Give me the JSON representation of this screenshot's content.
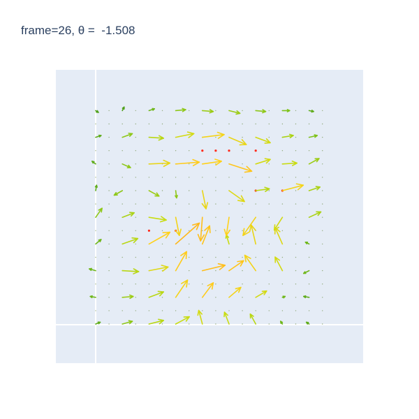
{
  "chart_data": {
    "type": "quiver",
    "title": "frame=26, θ =  -1.508",
    "xlabel": "",
    "ylabel": "",
    "grid": true,
    "legend": "none",
    "colors": {
      "plot_background": "#e5ecf6",
      "paper_background": "#ffffff",
      "grid": "#ffffff",
      "marker": "#ff2a1a",
      "arrow_scale": [
        "#2f8a1c",
        "#7fc21a",
        "#c8dc10",
        "#ffd11a",
        "#ffb21a"
      ]
    },
    "grid_points": {
      "x_range": [
        1,
        18
      ],
      "y_range": [
        1,
        17
      ],
      "description_count": "18 x 17 sample grid"
    },
    "source_points": [
      [
        9,
        14
      ],
      [
        10,
        14
      ],
      [
        11,
        14
      ],
      [
        13,
        14
      ],
      [
        13,
        11
      ],
      [
        15,
        11
      ],
      [
        5,
        8
      ],
      [
        7,
        8
      ]
    ],
    "arrows": [
      {
        "x": 1,
        "y": 1,
        "u": 0.5,
        "v": 0.2,
        "m": 0.15
      },
      {
        "x": 3,
        "y": 1,
        "u": 1.1,
        "v": 0.3,
        "m": 0.3
      },
      {
        "x": 5,
        "y": 1,
        "u": 1.6,
        "v": 0.4,
        "m": 0.45
      },
      {
        "x": 7,
        "y": 1,
        "u": 1.5,
        "v": 0.8,
        "m": 0.5
      },
      {
        "x": 9,
        "y": 1,
        "u": -0.4,
        "v": 1.5,
        "m": 0.55
      },
      {
        "x": 11,
        "y": 1,
        "u": -0.5,
        "v": 1.3,
        "m": 0.5
      },
      {
        "x": 13,
        "y": 1,
        "u": -0.6,
        "v": 1.1,
        "m": 0.45
      },
      {
        "x": 15,
        "y": 1,
        "u": -0.2,
        "v": 0.3,
        "m": 0.2
      },
      {
        "x": 17,
        "y": 1,
        "u": -0.3,
        "v": 0.2,
        "m": 0.15
      },
      {
        "x": 1,
        "y": 3,
        "u": -0.6,
        "v": 0.1,
        "m": 0.2
      },
      {
        "x": 3,
        "y": 3,
        "u": 1.2,
        "v": 0.1,
        "m": 0.35
      },
      {
        "x": 5,
        "y": 3,
        "u": 1.6,
        "v": 0.6,
        "m": 0.45
      },
      {
        "x": 7,
        "y": 3,
        "u": 1.3,
        "v": 1.9,
        "m": 0.7
      },
      {
        "x": 9,
        "y": 3,
        "u": 1.2,
        "v": 1.6,
        "m": 0.8
      },
      {
        "x": 11,
        "y": 3,
        "u": 1.3,
        "v": 1.1,
        "m": 0.7
      },
      {
        "x": 13,
        "y": 3,
        "u": 1.2,
        "v": 0.7,
        "m": 0.55
      },
      {
        "x": 15,
        "y": 3,
        "u": 0.3,
        "v": 0.1,
        "m": 0.2
      },
      {
        "x": 17,
        "y": 3,
        "u": -0.6,
        "v": 0.1,
        "m": 0.15
      },
      {
        "x": 1,
        "y": 5,
        "u": -0.7,
        "v": 0.2,
        "m": 0.2
      },
      {
        "x": 3,
        "y": 5,
        "u": 1.8,
        "v": -0.1,
        "m": 0.45
      },
      {
        "x": 5,
        "y": 5,
        "u": 2.1,
        "v": 0.4,
        "m": 0.6
      },
      {
        "x": 7,
        "y": 5,
        "u": 1.2,
        "v": 2.1,
        "m": 0.8
      },
      {
        "x": 9,
        "y": 5,
        "u": 2.5,
        "v": 0.6,
        "m": 0.9
      },
      {
        "x": 11,
        "y": 5,
        "u": 1.6,
        "v": 1.1,
        "m": 0.85
      },
      {
        "x": 13,
        "y": 5,
        "u": -1.2,
        "v": 1.7,
        "m": 0.7
      },
      {
        "x": 15,
        "y": 5,
        "u": -0.8,
        "v": 1.5,
        "m": 0.55
      },
      {
        "x": 17,
        "y": 5,
        "u": -0.6,
        "v": -0.3,
        "m": 0.2
      },
      {
        "x": 1,
        "y": 7,
        "u": 0.6,
        "v": 0.5,
        "m": 0.2
      },
      {
        "x": 3,
        "y": 7,
        "u": 1.7,
        "v": 0.6,
        "m": 0.45
      },
      {
        "x": 5,
        "y": 7,
        "u": 2.3,
        "v": 1.3,
        "m": 0.75
      },
      {
        "x": 7,
        "y": 7,
        "u": 2.6,
        "v": 2.3,
        "m": 0.95
      },
      {
        "x": 9,
        "y": 7,
        "u": 0.8,
        "v": 2.0,
        "m": 0.85
      },
      {
        "x": 11,
        "y": 7,
        "u": -0.3,
        "v": 1.0,
        "m": 0.5
      },
      {
        "x": 13,
        "y": 7,
        "u": -0.5,
        "v": 2.1,
        "m": 0.65
      },
      {
        "x": 15,
        "y": 7,
        "u": -0.8,
        "v": 1.8,
        "m": 0.6
      },
      {
        "x": 17,
        "y": 7,
        "u": -0.4,
        "v": 0.2,
        "m": 0.2
      },
      {
        "x": 1,
        "y": 9,
        "u": 0.7,
        "v": 1.0,
        "m": 0.3
      },
      {
        "x": 3,
        "y": 9,
        "u": 1.3,
        "v": 0.5,
        "m": 0.4
      },
      {
        "x": 5,
        "y": 9,
        "u": 1.9,
        "v": -0.3,
        "m": 0.5
      },
      {
        "x": 7,
        "y": 9,
        "u": 0.4,
        "v": -2.0,
        "m": 0.7
      },
      {
        "x": 9,
        "y": 9,
        "u": -0.2,
        "v": -2.6,
        "m": 0.9
      },
      {
        "x": 11,
        "y": 9,
        "u": -0.3,
        "v": -2.0,
        "m": 0.75
      },
      {
        "x": 13,
        "y": 9,
        "u": -1.4,
        "v": -2.0,
        "m": 0.7
      },
      {
        "x": 15,
        "y": 9,
        "u": -0.9,
        "v": -1.4,
        "m": 0.55
      },
      {
        "x": 17,
        "y": 9,
        "u": 1.3,
        "v": 0.6,
        "m": 0.4
      },
      {
        "x": 1,
        "y": 11,
        "u": 0.1,
        "v": 0.6,
        "m": 0.15
      },
      {
        "x": 3,
        "y": 11,
        "u": -0.9,
        "v": -0.5,
        "m": 0.3
      },
      {
        "x": 5,
        "y": 11,
        "u": 1.1,
        "v": -0.6,
        "m": 0.35
      },
      {
        "x": 7,
        "y": 11,
        "u": 0.1,
        "v": -0.8,
        "m": 0.3
      },
      {
        "x": 9,
        "y": 11,
        "u": 0.4,
        "v": -2.0,
        "m": 0.65
      },
      {
        "x": 11,
        "y": 11,
        "u": 1.7,
        "v": -1.2,
        "m": 0.6
      },
      {
        "x": 13,
        "y": 11,
        "u": 1.5,
        "v": 0.2,
        "m": 0.45
      },
      {
        "x": 15,
        "y": 11,
        "u": 2.3,
        "v": 0.6,
        "m": 0.7
      },
      {
        "x": 17,
        "y": 11,
        "u": 1.2,
        "v": 0.4,
        "m": 0.4
      },
      {
        "x": 1,
        "y": 13,
        "u": -0.4,
        "v": 0.3,
        "m": 0.15
      },
      {
        "x": 3,
        "y": 13,
        "u": 0.9,
        "v": -0.4,
        "m": 0.3
      },
      {
        "x": 5,
        "y": 13,
        "u": 2.3,
        "v": 0.1,
        "m": 0.65
      },
      {
        "x": 7,
        "y": 13,
        "u": 2.6,
        "v": 0.2,
        "m": 0.8
      },
      {
        "x": 9,
        "y": 13,
        "u": 2.1,
        "v": 0.3,
        "m": 0.75
      },
      {
        "x": 11,
        "y": 13,
        "u": 2.5,
        "v": -0.8,
        "m": 0.85
      },
      {
        "x": 13,
        "y": 13,
        "u": 1.6,
        "v": 0.5,
        "m": 0.55
      },
      {
        "x": 15,
        "y": 13,
        "u": 1.6,
        "v": 0.1,
        "m": 0.5
      },
      {
        "x": 17,
        "y": 13,
        "u": 1.1,
        "v": 0.6,
        "m": 0.35
      },
      {
        "x": 1,
        "y": 15,
        "u": 0.6,
        "v": 0.2,
        "m": 0.15
      },
      {
        "x": 3,
        "y": 15,
        "u": 1.1,
        "v": 0.4,
        "m": 0.3
      },
      {
        "x": 5,
        "y": 15,
        "u": 1.6,
        "v": -0.1,
        "m": 0.45
      },
      {
        "x": 7,
        "y": 15,
        "u": 2.0,
        "v": 0.4,
        "m": 0.55
      },
      {
        "x": 9,
        "y": 15,
        "u": 2.4,
        "v": 0.3,
        "m": 0.7
      },
      {
        "x": 11,
        "y": 15,
        "u": 1.9,
        "v": -0.8,
        "m": 0.65
      },
      {
        "x": 13,
        "y": 15,
        "u": 1.6,
        "v": -0.6,
        "m": 0.55
      },
      {
        "x": 15,
        "y": 15,
        "u": 1.2,
        "v": 0.2,
        "m": 0.4
      },
      {
        "x": 17,
        "y": 15,
        "u": 0.9,
        "v": 0.2,
        "m": 0.25
      },
      {
        "x": 1,
        "y": 17,
        "u": 0.3,
        "v": -0.2,
        "m": 0.1
      },
      {
        "x": 3,
        "y": 17,
        "u": 0.2,
        "v": 0.4,
        "m": 0.1
      },
      {
        "x": 5,
        "y": 17,
        "u": 0.6,
        "v": 0.2,
        "m": 0.2
      },
      {
        "x": 7,
        "y": 17,
        "u": 1.1,
        "v": 0.1,
        "m": 0.3
      },
      {
        "x": 9,
        "y": 17,
        "u": 1.2,
        "v": -0.1,
        "m": 0.35
      },
      {
        "x": 11,
        "y": 17,
        "u": 1.2,
        "v": -0.3,
        "m": 0.35
      },
      {
        "x": 13,
        "y": 17,
        "u": 1.1,
        "v": -0.1,
        "m": 0.3
      },
      {
        "x": 15,
        "y": 17,
        "u": 0.8,
        "v": 0.0,
        "m": 0.25
      },
      {
        "x": 17,
        "y": 17,
        "u": 0.5,
        "v": -0.1,
        "m": 0.15
      }
    ]
  }
}
